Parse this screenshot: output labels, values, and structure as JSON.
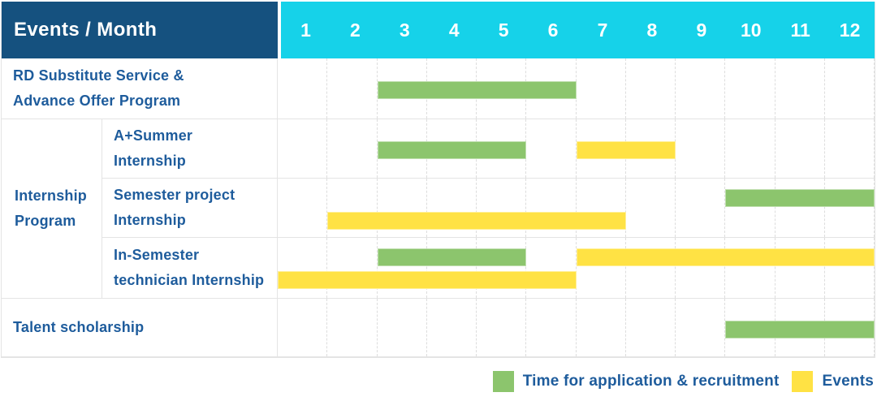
{
  "header": {
    "corner_label": "Events / Month",
    "months": [
      "1",
      "2",
      "3",
      "4",
      "5",
      "6",
      "7",
      "8",
      "9",
      "10",
      "11",
      "12"
    ]
  },
  "group_label": "Internship\nProgram",
  "colors": {
    "header_bg": "#15517f",
    "month_header_bg": "#16d2e9",
    "bar_green": "#8cc56d",
    "bar_yellow": "#ffe244",
    "label_text": "#1e5c9c",
    "grid_line": "#e4e4e4"
  },
  "chart_data": {
    "type": "table",
    "subtype": "gantt-timeline",
    "x_categories": [
      "1",
      "2",
      "3",
      "4",
      "5",
      "6",
      "7",
      "8",
      "9",
      "10",
      "11",
      "12"
    ],
    "x_axis_label": "Month",
    "legend_position": "bottom-right",
    "legend": [
      {
        "name": "Time for application & recruitment",
        "color": "#8cc56d"
      },
      {
        "name": "Events",
        "color": "#ffe244"
      }
    ],
    "rows": [
      {
        "label": "RD Substitute Service &\nAdvance Offer Program",
        "group": "",
        "bars": [
          {
            "series": "Time for application & recruitment",
            "start_month": 3,
            "end_month": 6,
            "level": "center"
          }
        ]
      },
      {
        "label": "A+Summer\nInternship",
        "group": "Internship Program",
        "bars": [
          {
            "series": "Time for application & recruitment",
            "start_month": 3,
            "end_month": 5,
            "level": "center"
          },
          {
            "series": "Events",
            "start_month": 7,
            "end_month": 8,
            "level": "center"
          }
        ]
      },
      {
        "label": "Semester project\nInternship",
        "group": "Internship Program",
        "bars": [
          {
            "series": "Time for application & recruitment",
            "start_month": 10,
            "end_month": 12,
            "level": "top"
          },
          {
            "series": "Events",
            "start_month": 2,
            "end_month": 7,
            "level": "bottom"
          }
        ]
      },
      {
        "label": "In-Semester\ntechnician Internship",
        "group": "Internship Program",
        "bars": [
          {
            "series": "Time for application & recruitment",
            "start_month": 3,
            "end_month": 5,
            "level": "top"
          },
          {
            "series": "Events",
            "start_month": 7,
            "end_month": 12,
            "level": "top"
          },
          {
            "series": "Events",
            "start_month": 1,
            "end_month": 6,
            "level": "bottom"
          }
        ]
      },
      {
        "label": "Talent scholarship",
        "group": "",
        "bars": [
          {
            "series": "Time for application & recruitment",
            "start_month": 10,
            "end_month": 12,
            "level": "center"
          }
        ]
      }
    ]
  }
}
